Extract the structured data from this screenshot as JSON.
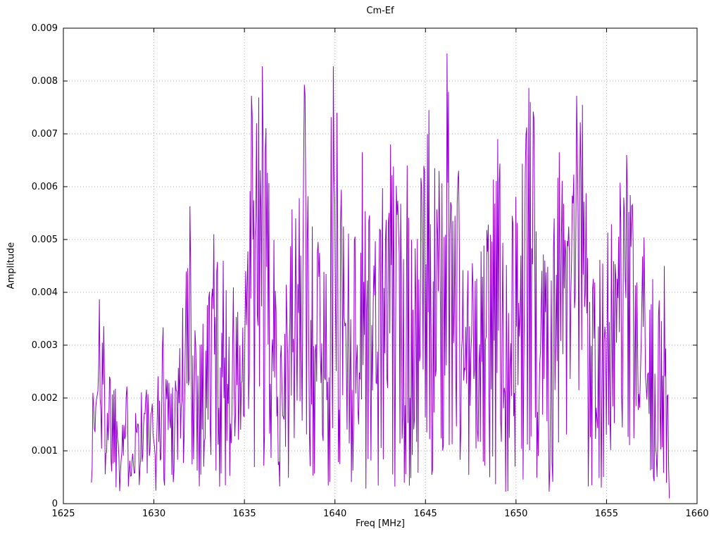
{
  "page": {
    "title": "Cm-Ef"
  },
  "chart_data": {
    "type": "line",
    "title": "Cm-Ef",
    "xlabel": "Freq [MHz]",
    "ylabel": "Amplitude",
    "xlim": [
      1625,
      1660
    ],
    "ylim": [
      0,
      0.009
    ],
    "xticks": [
      1625,
      1630,
      1635,
      1640,
      1645,
      1650,
      1655,
      1660
    ],
    "yticks": [
      0,
      0.001,
      0.002,
      0.003,
      0.004,
      0.005,
      0.006,
      0.007,
      0.008,
      0.009
    ],
    "grid": true,
    "legend_position": "none",
    "line_color": "#9400D3",
    "background_color": "#ffffff",
    "grid_color": "#aaaaaa",
    "data_x_range": [
      1626.55,
      1658.5
    ],
    "sample_step_mhz": 0.04,
    "noise_floor": 0.0002,
    "seed": 1337,
    "envelope": [
      [
        1626.5,
        0.002
      ],
      [
        1627.0,
        0.0039
      ],
      [
        1627.5,
        0.0032
      ],
      [
        1628.0,
        0.0024
      ],
      [
        1629.0,
        0.0022
      ],
      [
        1629.5,
        0.0026
      ],
      [
        1630.0,
        0.0018
      ],
      [
        1630.5,
        0.0036
      ],
      [
        1631.0,
        0.0028
      ],
      [
        1631.5,
        0.0038
      ],
      [
        1632.0,
        0.0056
      ],
      [
        1632.5,
        0.0035
      ],
      [
        1633.3,
        0.0051
      ],
      [
        1634.0,
        0.0045
      ],
      [
        1634.5,
        0.0042
      ],
      [
        1635.0,
        0.0038
      ],
      [
        1635.4,
        0.0077
      ],
      [
        1636.0,
        0.0083
      ],
      [
        1636.5,
        0.0053
      ],
      [
        1637.0,
        0.0045
      ],
      [
        1637.5,
        0.0052
      ],
      [
        1638.0,
        0.0067
      ],
      [
        1638.3,
        0.0079
      ],
      [
        1639.0,
        0.0055
      ],
      [
        1639.5,
        0.005
      ],
      [
        1639.9,
        0.0083
      ],
      [
        1640.3,
        0.0074
      ],
      [
        1641.0,
        0.005
      ],
      [
        1641.5,
        0.0067
      ],
      [
        1642.0,
        0.0055
      ],
      [
        1642.5,
        0.006
      ],
      [
        1643.0,
        0.0068
      ],
      [
        1643.5,
        0.0061
      ],
      [
        1644.0,
        0.0064
      ],
      [
        1644.5,
        0.0057
      ],
      [
        1645.2,
        0.0074
      ],
      [
        1645.8,
        0.0062
      ],
      [
        1646.2,
        0.0085
      ],
      [
        1646.8,
        0.0069
      ],
      [
        1647.3,
        0.0048
      ],
      [
        1648.0,
        0.0048
      ],
      [
        1648.5,
        0.0057
      ],
      [
        1649.0,
        0.0069
      ],
      [
        1649.5,
        0.0064
      ],
      [
        1650.0,
        0.006
      ],
      [
        1650.7,
        0.0079
      ],
      [
        1651.2,
        0.0073
      ],
      [
        1651.8,
        0.0059
      ],
      [
        1652.4,
        0.0067
      ],
      [
        1653.0,
        0.0058
      ],
      [
        1653.4,
        0.0077
      ],
      [
        1653.7,
        0.0075
      ],
      [
        1654.2,
        0.0053
      ],
      [
        1654.8,
        0.0052
      ],
      [
        1655.3,
        0.0055
      ],
      [
        1656.1,
        0.0066
      ],
      [
        1656.6,
        0.0052
      ],
      [
        1657.2,
        0.005
      ],
      [
        1657.8,
        0.0038
      ],
      [
        1658.2,
        0.0045
      ],
      [
        1658.5,
        0.0022
      ]
    ],
    "peaks": [
      [
        1627.0,
        0.00387
      ],
      [
        1632.0,
        0.00563
      ],
      [
        1633.3,
        0.0051
      ],
      [
        1635.4,
        0.00772
      ],
      [
        1636.0,
        0.00828
      ],
      [
        1638.3,
        0.00793
      ],
      [
        1639.9,
        0.00828
      ],
      [
        1640.1,
        0.0074
      ],
      [
        1641.5,
        0.00665
      ],
      [
        1643.05,
        0.0068
      ],
      [
        1644.0,
        0.0064
      ],
      [
        1645.2,
        0.00745
      ],
      [
        1646.2,
        0.00852
      ],
      [
        1649.0,
        0.0069
      ],
      [
        1650.7,
        0.00787
      ],
      [
        1651.0,
        0.0073
      ],
      [
        1652.4,
        0.00665
      ],
      [
        1653.35,
        0.00772
      ],
      [
        1653.65,
        0.00755
      ],
      [
        1656.1,
        0.0066
      ],
      [
        1658.2,
        0.0045
      ]
    ]
  }
}
